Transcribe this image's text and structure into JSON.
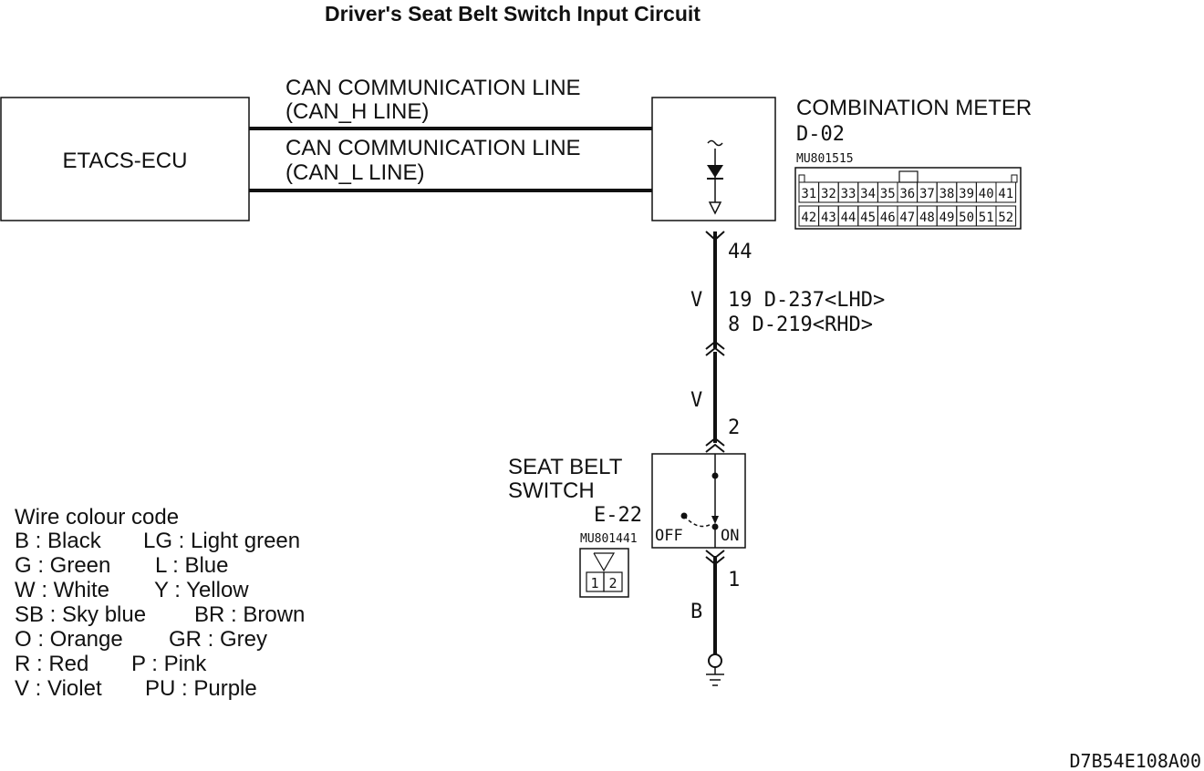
{
  "title": "Driver's Seat Belt Switch Input Circuit",
  "etacs": {
    "label": "ETACS-ECU"
  },
  "can_h": {
    "line1": "CAN COMMUNICATION LINE",
    "line2": "(CAN_H LINE)"
  },
  "can_l": {
    "line1": "CAN COMMUNICATION LINE",
    "line2": "(CAN_L LINE)"
  },
  "meter": {
    "name": "COMBINATION METER",
    "connector": "D-02",
    "part_no": "MU801515",
    "pins_top": [
      "31",
      "32",
      "33",
      "34",
      "35",
      "36",
      "37",
      "38",
      "39",
      "40",
      "41"
    ],
    "pins_bottom": [
      "42",
      "43",
      "44",
      "45",
      "46",
      "47",
      "48",
      "49",
      "50",
      "51",
      "52"
    ]
  },
  "wires": {
    "pin_meter": "44",
    "color_upper": "V",
    "junction_line1": "19 D-237<LHD>",
    "junction_line2": "8  D-219<RHD>",
    "color_middle": "V",
    "pin_switch_top": "2",
    "pin_switch_bottom": "1",
    "color_lower": "B"
  },
  "switch": {
    "name_line1": "SEAT BELT",
    "name_line2": "SWITCH",
    "connector": "E-22",
    "part_no": "MU801441",
    "off_label": "OFF",
    "on_label": "ON",
    "pins": [
      "1",
      "2"
    ]
  },
  "legend": {
    "heading": "Wire colour code",
    "rows": [
      [
        "B : Black",
        "LG : Light green"
      ],
      [
        "G : Green",
        "L : Blue"
      ],
      [
        "W : White",
        "Y : Yellow"
      ],
      [
        "SB : Sky blue",
        "BR : Brown"
      ],
      [
        "O : Orange",
        "GR : Grey"
      ],
      [
        "R : Red",
        "P : Pink"
      ],
      [
        "V : Violet",
        "PU : Purple"
      ]
    ]
  },
  "figure_code": "D7B54E108A00"
}
